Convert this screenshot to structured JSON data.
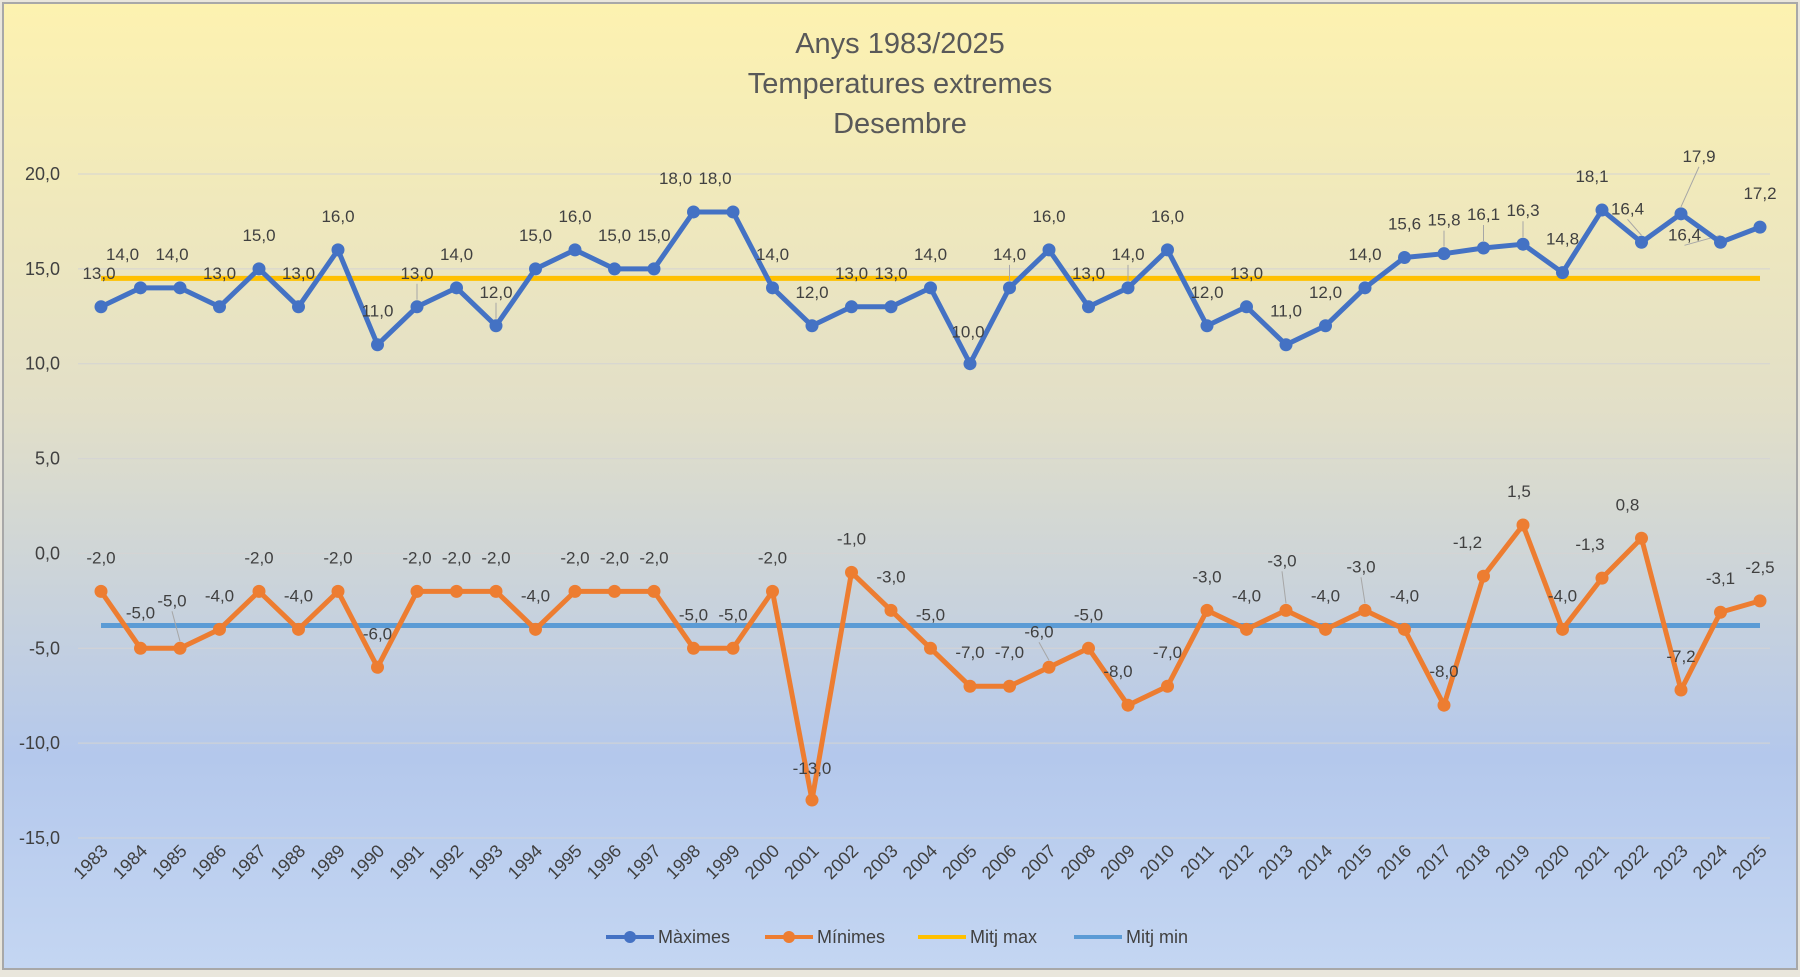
{
  "chart_data": {
    "type": "line",
    "title": [
      "Anys 1983/2025",
      "Temperatures extremes",
      "Desembre"
    ],
    "ylim": [
      -15,
      20
    ],
    "yticks": [
      "20,0",
      "15,0",
      "10,0",
      "5,0",
      "0,0",
      "-5,0",
      "-10,0",
      "-15,0"
    ],
    "ytick_values": [
      20,
      15,
      10,
      5,
      0,
      -5,
      -10,
      -15
    ],
    "grid": "horizontal",
    "legend_position": "bottom",
    "x": [
      "1983",
      "1984",
      "1985",
      "1986",
      "1987",
      "1988",
      "1989",
      "1990",
      "1991",
      "1992",
      "1993",
      "1994",
      "1995",
      "1996",
      "1997",
      "1998",
      "1999",
      "2000",
      "2001",
      "2002",
      "2003",
      "2004",
      "2005",
      "2006",
      "2007",
      "2008",
      "2009",
      "2010",
      "2011",
      "2012",
      "2013",
      "2014",
      "2015",
      "2016",
      "2017",
      "2018",
      "2019",
      "2020",
      "2021",
      "2022",
      "2023",
      "2024",
      "2025"
    ],
    "series": [
      {
        "name": "Màximes",
        "color": "#4472c4",
        "values": [
          13.0,
          14.0,
          14.0,
          13.0,
          15.0,
          13.0,
          16.0,
          11.0,
          13.0,
          14.0,
          12.0,
          15.0,
          16.0,
          15.0,
          15.0,
          18.0,
          18.0,
          14.0,
          12.0,
          13.0,
          13.0,
          14.0,
          10.0,
          14.0,
          16.0,
          13.0,
          14.0,
          16.0,
          12.0,
          13.0,
          11.0,
          12.0,
          14.0,
          15.6,
          15.8,
          16.1,
          16.3,
          14.8,
          18.1,
          16.4,
          17.9,
          16.4,
          17.2
        ],
        "labels": [
          "13,0",
          "14,0",
          "14,0",
          "13,0",
          "15,0",
          "13,0",
          "16,0",
          "11,0",
          "13,0",
          "14,0",
          "12,0",
          "15,0",
          "16,0",
          "15,0",
          "15,0",
          "18,0",
          "18,0",
          "14,0",
          "12,0",
          "13,0",
          "13,0",
          "14,0",
          "10,0",
          "14,0",
          "16,0",
          "13,0",
          "14,0",
          "16,0",
          "12,0",
          "13,0",
          "11,0",
          "12,0",
          "14,0",
          "15,6",
          "15,8",
          "16,1",
          "16,3",
          "14,8",
          "18,1",
          "16,4",
          "17,9",
          "16,4",
          "17,2"
        ]
      },
      {
        "name": "Mínimes",
        "color": "#ed7d31",
        "values": [
          -2.0,
          -5.0,
          -5.0,
          -4.0,
          -2.0,
          -4.0,
          -2.0,
          -6.0,
          -2.0,
          -2.0,
          -2.0,
          -4.0,
          -2.0,
          -2.0,
          -2.0,
          -5.0,
          -5.0,
          -2.0,
          -13.0,
          -1.0,
          -3.0,
          -5.0,
          -7.0,
          -7.0,
          -6.0,
          -5.0,
          -8.0,
          -7.0,
          -3.0,
          -4.0,
          -3.0,
          -4.0,
          -3.0,
          -4.0,
          -8.0,
          -1.2,
          1.5,
          -4.0,
          -1.3,
          0.8,
          -7.2,
          -3.1,
          -2.5
        ],
        "labels": [
          "-2,0",
          "-5,0",
          "-5,0",
          "-4,0",
          "-2,0",
          "-4,0",
          "-2,0",
          "-6,0",
          "-2,0",
          "-2,0",
          "-2,0",
          "-4,0",
          "-2,0",
          "-2,0",
          "-2,0",
          "-5,0",
          "-5,0",
          "-2,0",
          "-13,0",
          "-1,0",
          "-3,0",
          "-5,0",
          "-7,0",
          "-7,0",
          "-6,0",
          "-5,0",
          "-8,0",
          "-7,0",
          "-3,0",
          "-4,0",
          "-3,0",
          "-4,0",
          "-3,0",
          "-4,0",
          "-8,0",
          "-1,2",
          "1,5",
          "-4,0",
          "-1,3",
          "0,8",
          "-7,2",
          "-3,1",
          "-2,5"
        ]
      },
      {
        "name": "Mitj max",
        "color": "#ffc000",
        "constant": 14.5
      },
      {
        "name": "Mitj min",
        "color": "#5b9bd5",
        "constant": -3.8
      }
    ]
  }
}
